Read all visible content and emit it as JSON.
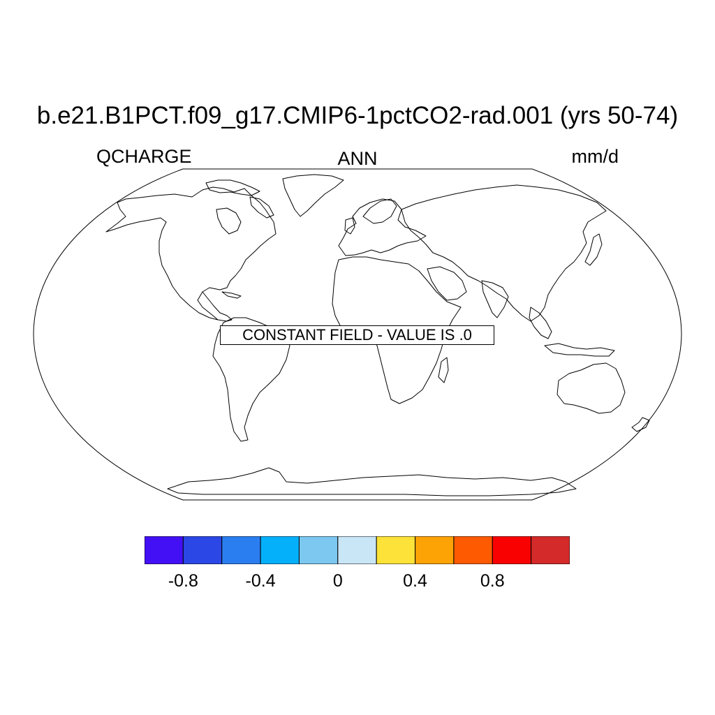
{
  "header": {
    "title": "b.e21.B1PCT.f09_g17.CMIP6-1pctCO2-rad.001 (yrs 50-74)",
    "left_label": "QCHARGE",
    "center_label": "ANN",
    "right_label": "mm/d"
  },
  "map": {
    "projection": "robinson",
    "fill": "none",
    "note": "CONSTANT FIELD - VALUE IS .0"
  },
  "colorbar": {
    "colors": [
      "#4310f5",
      "#2b47e6",
      "#2b7ef0",
      "#05b0fb",
      "#7cc8f0",
      "#c9e6f7",
      "#fde23a",
      "#fda305",
      "#fe5a02",
      "#fa0101",
      "#d42a2a"
    ],
    "boundaries": [
      -1.0,
      -0.8,
      -0.6,
      -0.4,
      -0.2,
      0.0,
      0.2,
      0.4,
      0.6,
      0.8,
      1.0
    ],
    "tick_values": [
      -0.8,
      -0.4,
      0,
      0.4,
      0.8
    ],
    "tick_labels": [
      "-0.8",
      "-0.4",
      "0",
      "0.4",
      "0.8"
    ]
  }
}
